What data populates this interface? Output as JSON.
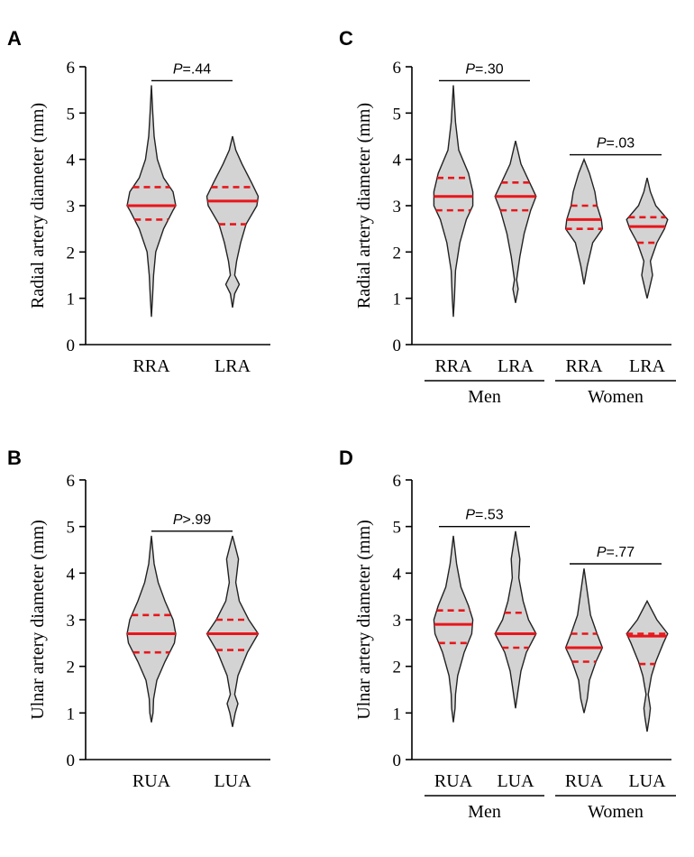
{
  "chart_data": [
    {
      "panel": "A",
      "type": "violin",
      "ylabel": "Radial artery diameter (mm)",
      "ylim": [
        0,
        6
      ],
      "yticks": [
        "0",
        "1",
        "2",
        "3",
        "4",
        "5",
        "6"
      ],
      "categories": [
        "RRA",
        "LRA"
      ],
      "groups": [],
      "series": [
        {
          "name": "RRA",
          "min": 0.6,
          "max": 5.6,
          "median": 3.0,
          "q1": 2.7,
          "q3": 3.4,
          "density": [
            [
              0.6,
              0
            ],
            [
              1.0,
              0.04
            ],
            [
              1.5,
              0.08
            ],
            [
              2.0,
              0.16
            ],
            [
              2.5,
              0.45
            ],
            [
              2.9,
              0.8
            ],
            [
              3.0,
              0.9
            ],
            [
              3.3,
              0.8
            ],
            [
              3.6,
              0.45
            ],
            [
              4.0,
              0.22
            ],
            [
              4.5,
              0.1
            ],
            [
              5.0,
              0.05
            ],
            [
              5.6,
              0
            ]
          ]
        },
        {
          "name": "LRA",
          "min": 0.8,
          "max": 4.5,
          "median": 3.1,
          "q1": 2.6,
          "q3": 3.4,
          "density": [
            [
              0.8,
              0
            ],
            [
              1.1,
              0.08
            ],
            [
              1.3,
              0.25
            ],
            [
              1.5,
              0.08
            ],
            [
              1.8,
              0.15
            ],
            [
              2.2,
              0.3
            ],
            [
              2.6,
              0.5
            ],
            [
              3.0,
              0.9
            ],
            [
              3.2,
              0.95
            ],
            [
              3.5,
              0.7
            ],
            [
              3.9,
              0.35
            ],
            [
              4.2,
              0.12
            ],
            [
              4.5,
              0
            ]
          ]
        }
      ],
      "comparisons": [
        {
          "text": "P=.44",
          "from": 0,
          "to": 1
        }
      ]
    },
    {
      "panel": "B",
      "type": "violin",
      "ylabel": "Ulnar artery diameter (mm)",
      "ylim": [
        0,
        6
      ],
      "yticks": [
        "0",
        "1",
        "2",
        "3",
        "4",
        "5",
        "6"
      ],
      "categories": [
        "RUA",
        "LUA"
      ],
      "groups": [],
      "series": [
        {
          "name": "RUA",
          "min": 0.8,
          "max": 4.8,
          "median": 2.7,
          "q1": 2.3,
          "q3": 3.1,
          "density": [
            [
              0.8,
              0
            ],
            [
              1.0,
              0.06
            ],
            [
              1.3,
              0.08
            ],
            [
              1.7,
              0.2
            ],
            [
              2.1,
              0.5
            ],
            [
              2.5,
              0.85
            ],
            [
              2.7,
              0.9
            ],
            [
              3.0,
              0.8
            ],
            [
              3.4,
              0.5
            ],
            [
              3.8,
              0.25
            ],
            [
              4.2,
              0.1
            ],
            [
              4.8,
              0
            ]
          ]
        },
        {
          "name": "LUA",
          "min": 0.7,
          "max": 4.8,
          "median": 2.7,
          "q1": 2.35,
          "q3": 3.0,
          "density": [
            [
              0.7,
              0
            ],
            [
              1.0,
              0.1
            ],
            [
              1.2,
              0.2
            ],
            [
              1.4,
              0.08
            ],
            [
              1.8,
              0.2
            ],
            [
              2.3,
              0.55
            ],
            [
              2.7,
              0.95
            ],
            [
              3.0,
              0.6
            ],
            [
              3.4,
              0.25
            ],
            [
              3.8,
              0.12
            ],
            [
              4.3,
              0.22
            ],
            [
              4.8,
              0
            ]
          ]
        }
      ],
      "comparisons": [
        {
          "text": "P>.99",
          "from": 0,
          "to": 1
        }
      ]
    },
    {
      "panel": "C",
      "type": "violin",
      "ylabel": "Radial artery diameter (mm)",
      "ylim": [
        0,
        6
      ],
      "yticks": [
        "0",
        "1",
        "2",
        "3",
        "4",
        "5",
        "6"
      ],
      "categories": [
        "RRA",
        "LRA",
        "RRA",
        "LRA"
      ],
      "groups": [
        {
          "label": "Men",
          "from": 0,
          "to": 1
        },
        {
          "label": "Women",
          "from": 2,
          "to": 3
        }
      ],
      "series": [
        {
          "name": "RRA (Men)",
          "min": 0.6,
          "max": 5.6,
          "median": 3.2,
          "q1": 2.9,
          "q3": 3.6,
          "density": [
            [
              0.6,
              0
            ],
            [
              1.0,
              0.05
            ],
            [
              1.6,
              0.1
            ],
            [
              2.2,
              0.3
            ],
            [
              2.7,
              0.6
            ],
            [
              3.0,
              0.9
            ],
            [
              3.3,
              0.9
            ],
            [
              3.7,
              0.7
            ],
            [
              4.2,
              0.25
            ],
            [
              4.8,
              0.1
            ],
            [
              5.6,
              0
            ]
          ]
        },
        {
          "name": "LRA (Men)",
          "min": 0.9,
          "max": 4.4,
          "median": 3.2,
          "q1": 2.9,
          "q3": 3.5,
          "density": [
            [
              0.9,
              0
            ],
            [
              1.2,
              0.12
            ],
            [
              1.4,
              0.05
            ],
            [
              1.9,
              0.2
            ],
            [
              2.4,
              0.4
            ],
            [
              2.9,
              0.7
            ],
            [
              3.2,
              0.95
            ],
            [
              3.5,
              0.65
            ],
            [
              3.9,
              0.25
            ],
            [
              4.4,
              0
            ]
          ]
        },
        {
          "name": "RRA (Women)",
          "min": 1.3,
          "max": 4.0,
          "median": 2.7,
          "q1": 2.5,
          "q3": 3.0,
          "density": [
            [
              1.3,
              0
            ],
            [
              1.7,
              0.15
            ],
            [
              2.2,
              0.4
            ],
            [
              2.5,
              0.85
            ],
            [
              2.7,
              0.8
            ],
            [
              3.0,
              0.6
            ],
            [
              3.3,
              0.5
            ],
            [
              3.7,
              0.25
            ],
            [
              4.0,
              0
            ]
          ]
        },
        {
          "name": "LRA (Women)",
          "min": 1.0,
          "max": 3.6,
          "median": 2.55,
          "q1": 2.2,
          "q3": 2.75,
          "density": [
            [
              1.0,
              0
            ],
            [
              1.3,
              0.15
            ],
            [
              1.5,
              0.25
            ],
            [
              1.8,
              0.15
            ],
            [
              2.2,
              0.45
            ],
            [
              2.5,
              0.8
            ],
            [
              2.7,
              0.95
            ],
            [
              3.0,
              0.4
            ],
            [
              3.3,
              0.15
            ],
            [
              3.6,
              0
            ]
          ]
        }
      ],
      "comparisons": [
        {
          "text": "P=.30",
          "from": 0,
          "to": 1
        },
        {
          "text": "P=.03",
          "from": 2,
          "to": 3
        }
      ]
    },
    {
      "panel": "D",
      "type": "violin",
      "ylabel": "Ulnar artery diameter (mm)",
      "ylim": [
        0,
        6
      ],
      "yticks": [
        "0",
        "1",
        "2",
        "3",
        "4",
        "5",
        "6"
      ],
      "categories": [
        "RUA",
        "LUA",
        "RUA",
        "LUA"
      ],
      "groups": [
        {
          "label": "Men",
          "from": 0,
          "to": 1
        },
        {
          "label": "Women",
          "from": 2,
          "to": 3
        }
      ],
      "series": [
        {
          "name": "RUA (Men)",
          "min": 0.8,
          "max": 4.8,
          "median": 2.9,
          "q1": 2.5,
          "q3": 3.2,
          "density": [
            [
              0.8,
              0
            ],
            [
              1.1,
              0.08
            ],
            [
              1.4,
              0.1
            ],
            [
              1.8,
              0.2
            ],
            [
              2.3,
              0.5
            ],
            [
              2.7,
              0.85
            ],
            [
              3.0,
              0.9
            ],
            [
              3.3,
              0.7
            ],
            [
              3.7,
              0.35
            ],
            [
              4.2,
              0.15
            ],
            [
              4.8,
              0
            ]
          ]
        },
        {
          "name": "LUA (Men)",
          "min": 1.1,
          "max": 4.9,
          "median": 2.7,
          "q1": 2.4,
          "q3": 3.15,
          "density": [
            [
              1.1,
              0
            ],
            [
              1.5,
              0.12
            ],
            [
              1.9,
              0.25
            ],
            [
              2.3,
              0.5
            ],
            [
              2.7,
              0.95
            ],
            [
              3.0,
              0.6
            ],
            [
              3.4,
              0.35
            ],
            [
              3.9,
              0.15
            ],
            [
              4.3,
              0.2
            ],
            [
              4.9,
              0
            ]
          ]
        },
        {
          "name": "RUA (Women)",
          "min": 1.0,
          "max": 4.1,
          "median": 2.4,
          "q1": 2.1,
          "q3": 2.7,
          "density": [
            [
              1.0,
              0
            ],
            [
              1.3,
              0.15
            ],
            [
              1.7,
              0.25
            ],
            [
              2.1,
              0.55
            ],
            [
              2.4,
              0.85
            ],
            [
              2.7,
              0.6
            ],
            [
              3.1,
              0.3
            ],
            [
              3.6,
              0.15
            ],
            [
              4.1,
              0
            ]
          ]
        },
        {
          "name": "LUA (Women)",
          "min": 0.6,
          "max": 3.4,
          "median": 2.65,
          "q1": 2.05,
          "q3": 2.7,
          "density": [
            [
              0.6,
              0
            ],
            [
              0.9,
              0.1
            ],
            [
              1.1,
              0.15
            ],
            [
              1.4,
              0.05
            ],
            [
              1.8,
              0.2
            ],
            [
              2.1,
              0.4
            ],
            [
              2.5,
              0.75
            ],
            [
              2.7,
              0.95
            ],
            [
              3.0,
              0.45
            ],
            [
              3.4,
              0
            ]
          ]
        }
      ],
      "comparisons": [
        {
          "text": "P=.53",
          "from": 0,
          "to": 1
        },
        {
          "text": "P=.77",
          "from": 2,
          "to": 3
        }
      ]
    }
  ],
  "colors": {
    "violin_fill": "#d3d3d3",
    "violin_stroke": "#222222",
    "median": "#e8161b",
    "quartile": "#e8161b"
  }
}
